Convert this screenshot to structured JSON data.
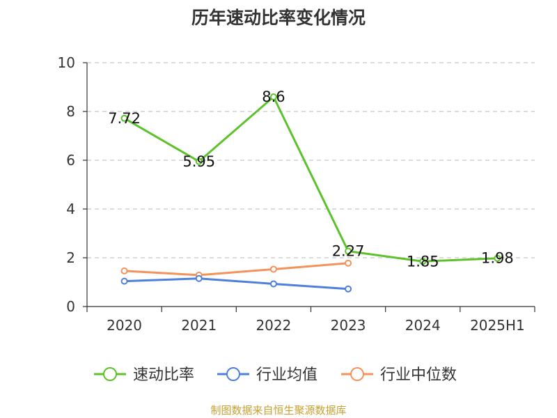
{
  "chart_data": {
    "type": "line",
    "title": "历年速动比率变化情况",
    "categories": [
      "2020",
      "2021",
      "2022",
      "2023",
      "2024",
      "2025H1"
    ],
    "ylim": [
      0,
      10
    ],
    "yticks": [
      0,
      2,
      4,
      6,
      8,
      10
    ],
    "grid": true,
    "legend_position": "bottom",
    "series": [
      {
        "name": "速动比率",
        "color": "#5cc22b",
        "values": [
          7.72,
          5.95,
          8.6,
          2.27,
          1.85,
          1.98
        ],
        "labels": [
          "7.72",
          "5.95",
          "8.6",
          "2.27",
          "1.85",
          "1.98"
        ]
      },
      {
        "name": "行业均值",
        "color": "#4f7fdc",
        "values": [
          1.04,
          1.15,
          0.93,
          0.72,
          null,
          null
        ]
      },
      {
        "name": "行业中位数",
        "color": "#f5925b",
        "values": [
          1.46,
          1.29,
          1.53,
          1.78,
          null,
          null
        ]
      }
    ]
  },
  "source": "制图数据来自恒生聚源数据库"
}
